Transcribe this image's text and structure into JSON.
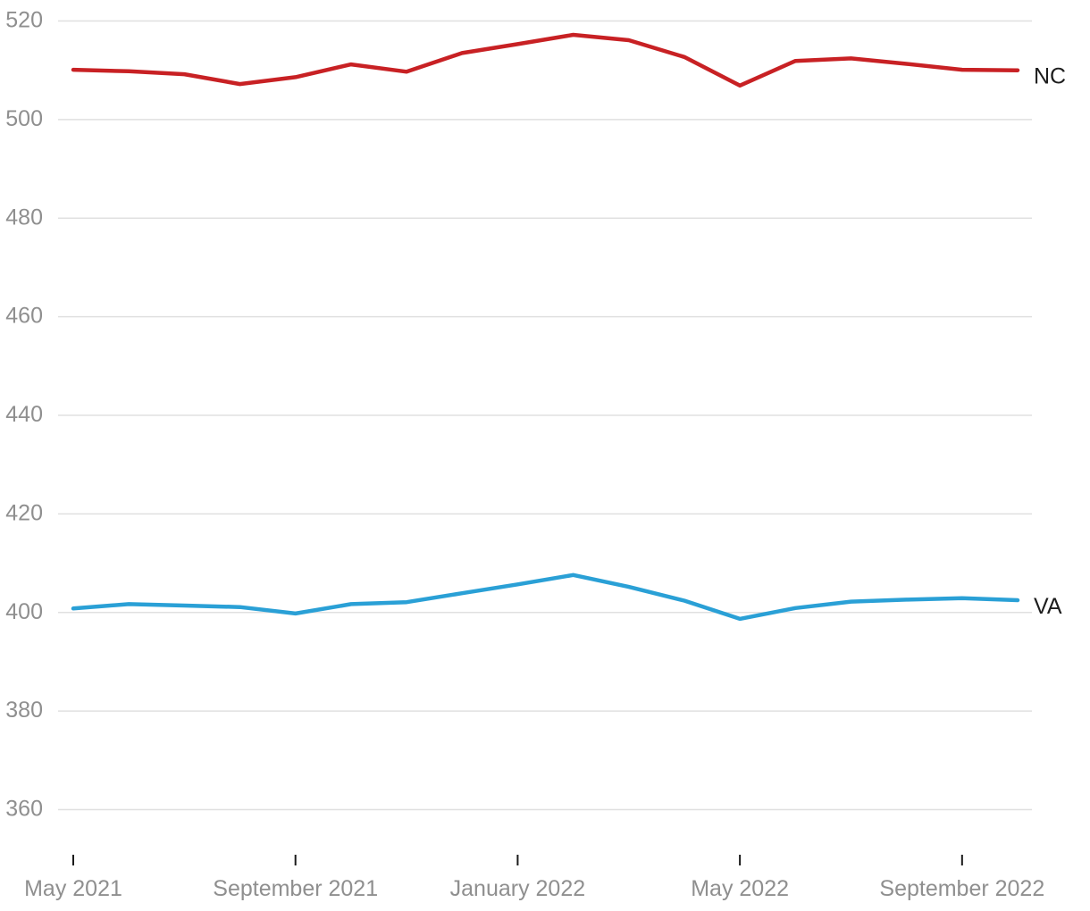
{
  "chart_data": {
    "type": "line",
    "title": "",
    "x": [
      "May 2021",
      "June 2021",
      "July 2021",
      "August 2021",
      "September 2021",
      "October 2021",
      "November 2021",
      "December 2021",
      "January 2022",
      "February 2022",
      "March 2022",
      "April 2022",
      "May 2022",
      "June 2022",
      "July 2022",
      "August 2022",
      "September 2022",
      "October 2022"
    ],
    "series": [
      {
        "name": "NC",
        "color": "#c82124",
        "values": [
          510.1,
          509.8,
          509.2,
          507.2,
          508.6,
          511.2,
          509.7,
          513.5,
          515.3,
          517.2,
          516.1,
          512.7,
          506.9,
          511.9,
          512.4,
          511.3,
          510.1,
          510.0
        ]
      },
      {
        "name": "VA",
        "color": "#2aa0d6",
        "values": [
          400.8,
          401.7,
          401.4,
          401.1,
          399.8,
          401.7,
          402.1,
          403.9,
          405.7,
          407.6,
          405.2,
          402.4,
          398.7,
          400.9,
          402.2,
          402.6,
          402.9,
          402.5
        ]
      }
    ],
    "ylim": [
      360,
      520
    ],
    "ytick_step": 20,
    "yticks": [
      520,
      500,
      480,
      460,
      440,
      420,
      400,
      380,
      360
    ],
    "xticks": [
      {
        "index": 0,
        "label": "May 2021"
      },
      {
        "index": 4,
        "label": "September 2021"
      },
      {
        "index": 8,
        "label": "January 2022"
      },
      {
        "index": 12,
        "label": "May 2022"
      },
      {
        "index": 16,
        "label": "September 2022"
      }
    ],
    "grid": true,
    "legend_position": "end-of-line",
    "colors": {
      "background": "#ffffff",
      "gridline": "#e0e0e0",
      "axis_text": "#8f8f8f",
      "tick_mark": "#1a1a1a",
      "series_label_text": "#1d1d1d"
    }
  }
}
